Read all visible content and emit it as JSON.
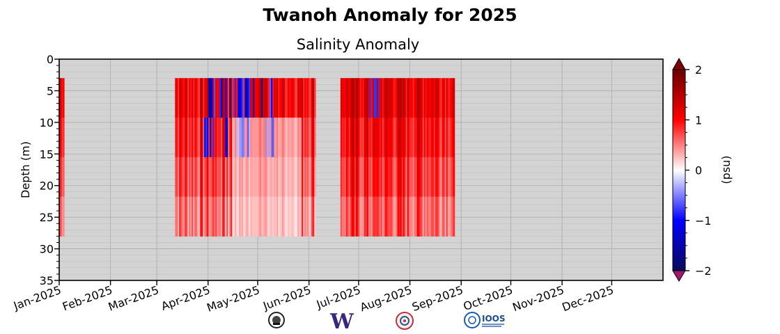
{
  "chart_data": {
    "type": "heatmap",
    "title": "Twanoh Anomaly for 2025",
    "subtitle": "Salinity Anomaly",
    "xlabel": "",
    "ylabel": "Depth (m)",
    "xlim": [
      "2025-01-01",
      "2026-01-01"
    ],
    "ylim": [
      35,
      0
    ],
    "y_inverted": true,
    "grid": true,
    "xticks": [
      "Jan-2025",
      "Feb-2025",
      "Mar-2025",
      "Apr-2025",
      "May-2025",
      "Jun-2025",
      "Jul-2025",
      "Aug-2025",
      "Sep-2025",
      "Oct-2025",
      "Nov-2025",
      "Dec-2025"
    ],
    "yticks": [
      "0",
      "5",
      "10",
      "15",
      "20",
      "25",
      "30",
      "35"
    ],
    "colorbar": {
      "label": "(psu)",
      "range": [
        -2,
        2
      ],
      "ticks": [
        "2",
        "1",
        "0",
        "−1",
        "−2"
      ],
      "extend": "both",
      "colors": {
        "min": "#0a0a5a",
        "neg": "#0000ff",
        "zero": "#ffffff",
        "pos": "#ff0000",
        "max": "#6b0000",
        "under": "#a0186a",
        "over": "#800000"
      }
    },
    "data_segments": [
      {
        "start": "2025-01-01",
        "end": "2025-01-04",
        "depth_range": [
          3,
          28
        ],
        "typical_anomaly": 0.7
      },
      {
        "start": "2025-03-12",
        "end": "2025-06-05",
        "depth_range": [
          3,
          28
        ],
        "typical_anomaly": 0.6
      },
      {
        "start": "2025-06-20",
        "end": "2025-08-28",
        "depth_range": [
          3,
          28
        ],
        "typical_anomaly": 0.7
      }
    ],
    "background_color": "#d3d3d3"
  },
  "logos": [
    {
      "icon": "seal-logo-1"
    },
    {
      "icon": "uw-w-logo",
      "text": "W"
    },
    {
      "icon": "circular-logo-2"
    },
    {
      "icon": "ioos-logo",
      "text": "IOOS"
    }
  ]
}
